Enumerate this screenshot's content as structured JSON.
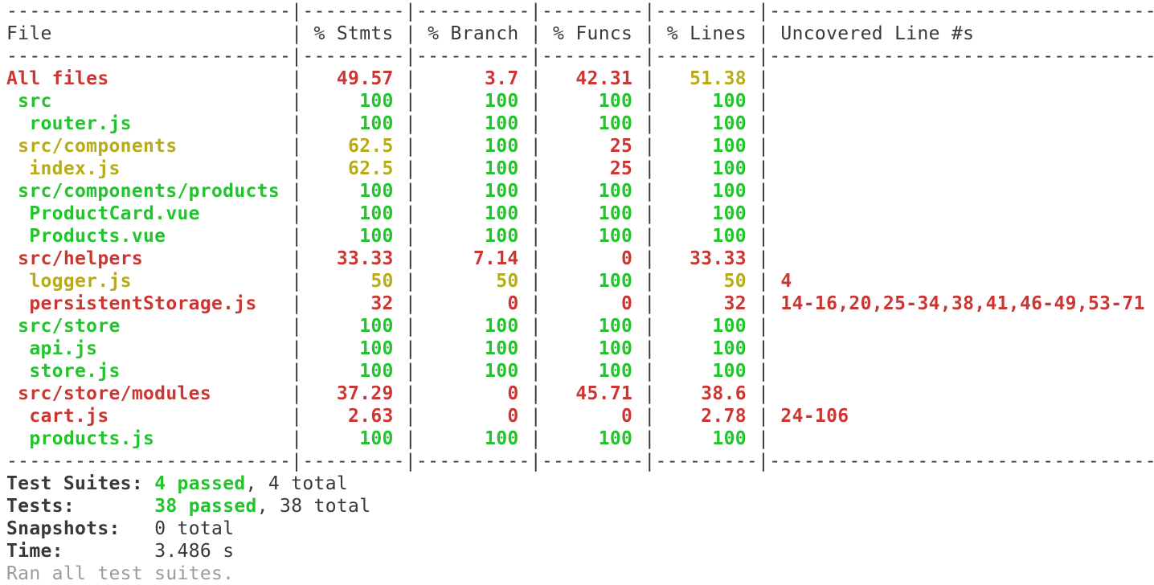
{
  "colors": {
    "red": "#ca3632",
    "green": "#23c32d",
    "yellow": "#b8ab1a",
    "default": "#383838",
    "muted": "#9b9b9b"
  },
  "table": {
    "headers": [
      "File",
      "% Stmts",
      "% Branch",
      "% Funcs",
      "% Lines",
      "Uncovered Line #s"
    ],
    "rows": [
      {
        "file": "All files",
        "indent": 0,
        "color": "red",
        "stmts": [
          "49.57",
          "red"
        ],
        "branch": [
          "3.7",
          "red"
        ],
        "funcs": [
          "42.31",
          "red"
        ],
        "lines": [
          "51.38",
          "yellow"
        ],
        "uncovered": ""
      },
      {
        "file": "src",
        "indent": 1,
        "color": "green",
        "stmts": [
          "100",
          "green"
        ],
        "branch": [
          "100",
          "green"
        ],
        "funcs": [
          "100",
          "green"
        ],
        "lines": [
          "100",
          "green"
        ],
        "uncovered": ""
      },
      {
        "file": "router.js",
        "indent": 2,
        "color": "green",
        "stmts": [
          "100",
          "green"
        ],
        "branch": [
          "100",
          "green"
        ],
        "funcs": [
          "100",
          "green"
        ],
        "lines": [
          "100",
          "green"
        ],
        "uncovered": ""
      },
      {
        "file": "src/components",
        "indent": 1,
        "color": "yellow",
        "stmts": [
          "62.5",
          "yellow"
        ],
        "branch": [
          "100",
          "green"
        ],
        "funcs": [
          "25",
          "red"
        ],
        "lines": [
          "100",
          "green"
        ],
        "uncovered": ""
      },
      {
        "file": "index.js",
        "indent": 2,
        "color": "yellow",
        "stmts": [
          "62.5",
          "yellow"
        ],
        "branch": [
          "100",
          "green"
        ],
        "funcs": [
          "25",
          "red"
        ],
        "lines": [
          "100",
          "green"
        ],
        "uncovered": ""
      },
      {
        "file": "src/components/products",
        "indent": 1,
        "color": "green",
        "stmts": [
          "100",
          "green"
        ],
        "branch": [
          "100",
          "green"
        ],
        "funcs": [
          "100",
          "green"
        ],
        "lines": [
          "100",
          "green"
        ],
        "uncovered": ""
      },
      {
        "file": "ProductCard.vue",
        "indent": 2,
        "color": "green",
        "stmts": [
          "100",
          "green"
        ],
        "branch": [
          "100",
          "green"
        ],
        "funcs": [
          "100",
          "green"
        ],
        "lines": [
          "100",
          "green"
        ],
        "uncovered": ""
      },
      {
        "file": "Products.vue",
        "indent": 2,
        "color": "green",
        "stmts": [
          "100",
          "green"
        ],
        "branch": [
          "100",
          "green"
        ],
        "funcs": [
          "100",
          "green"
        ],
        "lines": [
          "100",
          "green"
        ],
        "uncovered": ""
      },
      {
        "file": "src/helpers",
        "indent": 1,
        "color": "red",
        "stmts": [
          "33.33",
          "red"
        ],
        "branch": [
          "7.14",
          "red"
        ],
        "funcs": [
          "0",
          "red"
        ],
        "lines": [
          "33.33",
          "red"
        ],
        "uncovered": ""
      },
      {
        "file": "logger.js",
        "indent": 2,
        "color": "yellow",
        "stmts": [
          "50",
          "yellow"
        ],
        "branch": [
          "50",
          "yellow"
        ],
        "funcs": [
          "100",
          "green"
        ],
        "lines": [
          "50",
          "yellow"
        ],
        "uncovered": "4"
      },
      {
        "file": "persistentStorage.js",
        "indent": 2,
        "color": "red",
        "stmts": [
          "32",
          "red"
        ],
        "branch": [
          "0",
          "red"
        ],
        "funcs": [
          "0",
          "red"
        ],
        "lines": [
          "32",
          "red"
        ],
        "uncovered": "14-16,20,25-34,38,41,46-49,53-71"
      },
      {
        "file": "src/store",
        "indent": 1,
        "color": "green",
        "stmts": [
          "100",
          "green"
        ],
        "branch": [
          "100",
          "green"
        ],
        "funcs": [
          "100",
          "green"
        ],
        "lines": [
          "100",
          "green"
        ],
        "uncovered": ""
      },
      {
        "file": "api.js",
        "indent": 2,
        "color": "green",
        "stmts": [
          "100",
          "green"
        ],
        "branch": [
          "100",
          "green"
        ],
        "funcs": [
          "100",
          "green"
        ],
        "lines": [
          "100",
          "green"
        ],
        "uncovered": ""
      },
      {
        "file": "store.js",
        "indent": 2,
        "color": "green",
        "stmts": [
          "100",
          "green"
        ],
        "branch": [
          "100",
          "green"
        ],
        "funcs": [
          "100",
          "green"
        ],
        "lines": [
          "100",
          "green"
        ],
        "uncovered": ""
      },
      {
        "file": "src/store/modules",
        "indent": 1,
        "color": "red",
        "stmts": [
          "37.29",
          "red"
        ],
        "branch": [
          "0",
          "red"
        ],
        "funcs": [
          "45.71",
          "red"
        ],
        "lines": [
          "38.6",
          "red"
        ],
        "uncovered": ""
      },
      {
        "file": "cart.js",
        "indent": 2,
        "color": "red",
        "stmts": [
          "2.63",
          "red"
        ],
        "branch": [
          "0",
          "red"
        ],
        "funcs": [
          "0",
          "red"
        ],
        "lines": [
          "2.78",
          "red"
        ],
        "uncovered": "24-106"
      },
      {
        "file": "products.js",
        "indent": 2,
        "color": "green",
        "stmts": [
          "100",
          "green"
        ],
        "branch": [
          "100",
          "green"
        ],
        "funcs": [
          "100",
          "green"
        ],
        "lines": [
          "100",
          "green"
        ],
        "uncovered": ""
      }
    ]
  },
  "summary": {
    "rows": [
      {
        "label": "Test Suites:",
        "highlight": "4 passed",
        "rest": ", 4 total"
      },
      {
        "label": "Tests:",
        "highlight": "38 passed",
        "rest": ", 38 total"
      },
      {
        "label": "Snapshots:",
        "highlight": "",
        "rest": "0 total"
      },
      {
        "label": "Time:",
        "highlight": "",
        "rest": "3.486 s"
      }
    ],
    "footer": "Ran all test suites."
  }
}
